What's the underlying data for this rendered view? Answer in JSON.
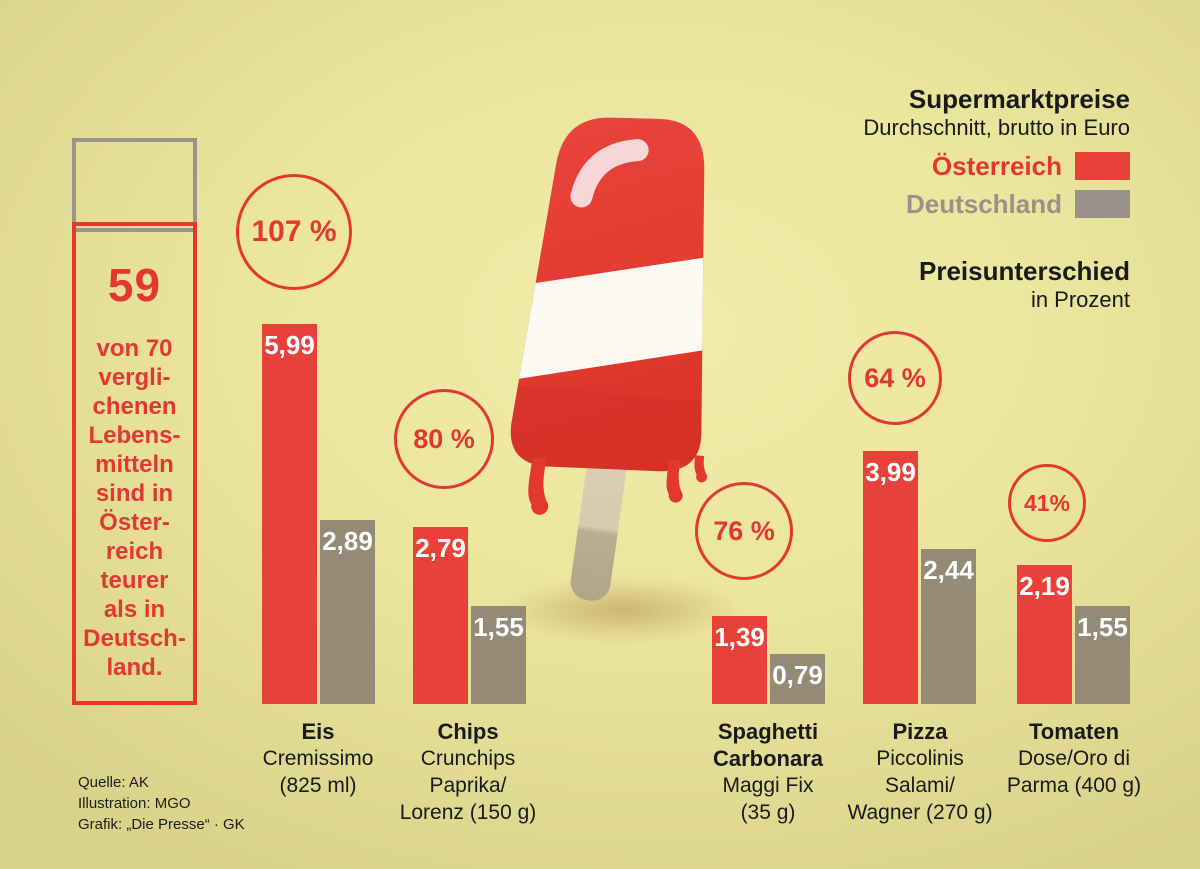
{
  "stat_box": {
    "number": "59",
    "text": "von 70\nvergli-\nchenen\nLebens-\nmitteln\nsind in\nÖster-\nreich\nteurer\nals in\nDeutsch-\nland."
  },
  "legend": {
    "title": "Supermarktpreise",
    "subtitle": "Durchschnitt, brutto in Euro",
    "austria_label": "Österreich",
    "germany_label": "Deutschland",
    "diff_title": "Preisunterschied",
    "diff_subtitle": "in Prozent"
  },
  "chart_data": {
    "type": "bar",
    "title": "Supermarktpreise",
    "subtitle": "Durchschnitt, brutto in Euro",
    "unit": "EUR (brutto, Durchschnitt)",
    "categories": [
      "Eis Cremissimo (825 ml)",
      "Chips Crunchips Paprika/Lorenz (150 g)",
      "Spaghetti Carbonara Maggi Fix (35 g)",
      "Pizza Piccolinis Salami/Wagner (270 g)",
      "Tomaten Dose/Oro di Parma (400 g)"
    ],
    "series": [
      {
        "name": "Österreich",
        "color": "#e84139",
        "values": [
          5.99,
          2.79,
          1.39,
          3.99,
          2.19
        ]
      },
      {
        "name": "Deutschland",
        "color": "#948a76",
        "values": [
          2.89,
          1.55,
          0.79,
          2.44,
          1.55
        ]
      }
    ],
    "difference_percent": [
      107,
      80,
      76,
      64,
      41
    ],
    "ylim": [
      0,
      6
    ],
    "grid": false,
    "legend_position": "top-right"
  },
  "products": [
    {
      "percent_label": "107 %",
      "at_label": "5,99",
      "de_label": "2,89",
      "bold": "Eis",
      "desc": "Cremissimo\n(825 ml)"
    },
    {
      "percent_label": "80 %",
      "at_label": "2,79",
      "de_label": "1,55",
      "bold": "Chips",
      "desc": "Crunchips\nPaprika/\nLorenz (150 g)"
    },
    {
      "percent_label": "76 %",
      "at_label": "1,39",
      "de_label": "0,79",
      "bold": "Spaghetti\nCarbonara",
      "desc": "Maggi Fix\n(35 g)"
    },
    {
      "percent_label": "64 %",
      "at_label": "3,99",
      "de_label": "2,44",
      "bold": "Pizza",
      "desc": "Piccolinis\nSalami/\nWagner (270 g)"
    },
    {
      "percent_label": "41%",
      "at_label": "2,19",
      "de_label": "1,55",
      "bold": "Tomaten",
      "desc": "Dose/Oro di\nParma (400 g)"
    }
  ],
  "credits": [
    "Quelle: AK",
    "Illustration: MGO",
    "Grafik: „Die Presse“ · GK"
  ],
  "colors": {
    "accent_red": "#e2382f",
    "bar_red": "#e84139",
    "bar_gray": "#948a76",
    "legend_gray": "#9a9288",
    "background": "#ebe59d"
  }
}
